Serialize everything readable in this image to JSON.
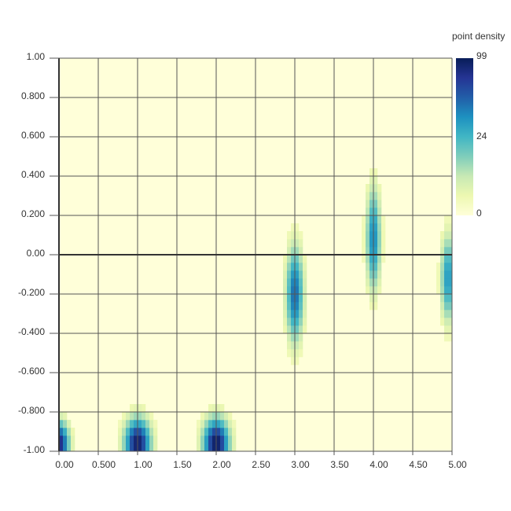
{
  "chart_data": {
    "type": "heatmap",
    "title": "",
    "xlabel": "",
    "ylabel": "",
    "xlim": [
      0,
      5
    ],
    "ylim": [
      -1,
      1
    ],
    "x_ticks": [
      "0.00",
      "0.500",
      "1.00",
      "1.50",
      "2.00",
      "2.50",
      "3.00",
      "3.50",
      "4.00",
      "4.50",
      "5.00"
    ],
    "y_ticks": [
      "1.00",
      "0.800",
      "0.600",
      "0.400",
      "0.200",
      "0.00",
      "-0.200",
      "-0.400",
      "-0.600",
      "-0.800",
      "-1.00"
    ],
    "grid": true,
    "bin_size": [
      0.05,
      0.04
    ],
    "blobs": [
      {
        "x": 0.0,
        "y": -0.96,
        "peak": 90,
        "spread_x": 0.07,
        "spread_y": 0.06
      },
      {
        "x": 1.0,
        "y": -0.96,
        "peak": 96,
        "spread_x": 0.09,
        "spread_y": 0.07
      },
      {
        "x": 2.0,
        "y": -0.96,
        "peak": 99,
        "spread_x": 0.09,
        "spread_y": 0.07
      },
      {
        "x": 3.0,
        "y": -0.2,
        "peak": 55,
        "spread_x": 0.06,
        "spread_y": 0.13
      },
      {
        "x": 4.0,
        "y": 0.08,
        "peak": 45,
        "spread_x": 0.05,
        "spread_y": 0.14
      },
      {
        "x": 4.95,
        "y": -0.12,
        "peak": 40,
        "spread_x": 0.05,
        "spread_y": 0.12
      }
    ],
    "colorbar": {
      "title": "point density",
      "ticks": [
        "99",
        "24",
        "0"
      ],
      "min": 0,
      "max": 99,
      "colors": [
        "#ffffd9",
        "#edf8b1",
        "#c7e9b4",
        "#7fcdbb",
        "#41b6c4",
        "#1d91c0",
        "#225ea8",
        "#253494",
        "#081d58"
      ]
    }
  }
}
